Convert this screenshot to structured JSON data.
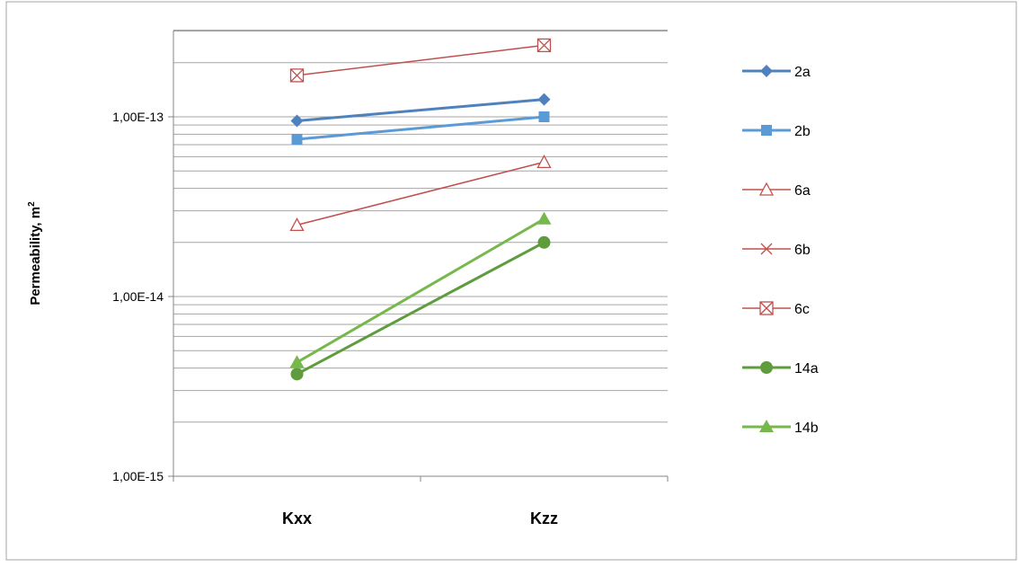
{
  "chart_data": {
    "type": "line",
    "title": "",
    "xlabel": "",
    "ylabel": "Permeability, m",
    "ylabel_superscript": "2",
    "yscale": "log",
    "ylim": [
      1e-15,
      3e-13
    ],
    "y_tick_labels": [
      {
        "value": 1e-13,
        "label": "1,00E-13"
      },
      {
        "value": 1e-14,
        "label": "1,00E-14"
      },
      {
        "value": 1e-15,
        "label": "1,00E-15"
      }
    ],
    "categories": [
      "Kxx",
      "Kzz"
    ],
    "grid": true,
    "legend_position": "right",
    "series": [
      {
        "name": "2a",
        "values": [
          9.5e-14,
          1.25e-13
        ],
        "color": "#4f81bd",
        "marker": "diamond",
        "line_width": 3
      },
      {
        "name": "2b",
        "values": [
          7.5e-14,
          1e-13
        ],
        "color": "#5b9bd5",
        "marker": "square",
        "line_width": 3
      },
      {
        "name": "6a",
        "values": [
          2.5e-14,
          5.6e-14
        ],
        "color": "#c0504d",
        "marker": "triangle-open",
        "line_width": 1.5
      },
      {
        "name": "6b",
        "values": [
          null,
          null
        ],
        "color": "#c0504d",
        "marker": "x",
        "line_width": 1.5
      },
      {
        "name": "6c",
        "values": [
          1.7e-13,
          2.5e-13
        ],
        "color": "#c0504d",
        "marker": "square-x-open",
        "line_width": 1.5
      },
      {
        "name": "14a",
        "values": [
          3.7e-15,
          2e-14
        ],
        "color": "#5e9c3e",
        "marker": "circle",
        "line_width": 3
      },
      {
        "name": "14b",
        "values": [
          4.3e-15,
          2.7e-14
        ],
        "color": "#77b84d",
        "marker": "triangle",
        "line_width": 3
      }
    ]
  }
}
